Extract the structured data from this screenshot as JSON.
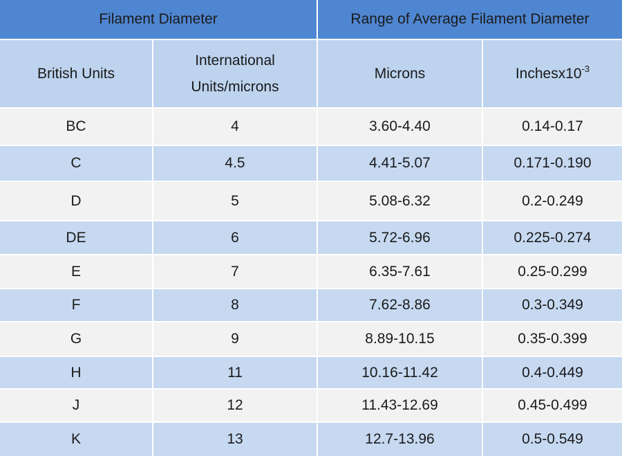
{
  "table": {
    "group_headers": [
      "Filament Diameter",
      "Range of Average Filament Diameter"
    ],
    "column_headers": [
      "British Units",
      "International Units/microns",
      "Microns",
      {
        "text": "Inchesx10",
        "superscript": "-3"
      }
    ],
    "rows": [
      [
        "BC",
        "4",
        "3.60-4.40",
        "0.14-0.17"
      ],
      [
        "C",
        "4.5",
        "4.41-5.07",
        "0.171-0.190"
      ],
      [
        "D",
        "5",
        "5.08-6.32",
        "0.2-0.249"
      ],
      [
        "DE",
        "6",
        "5.72-6.96",
        "0.225-0.274"
      ],
      [
        "E",
        "7",
        "6.35-7.61",
        "0.25-0.299"
      ],
      [
        "F",
        "8",
        "7.62-8.86",
        "0.3-0.349"
      ],
      [
        "G",
        "9",
        "8.89-10.15",
        "0.35-0.399"
      ],
      [
        "H",
        "11",
        "10.16-11.42",
        "0.4-0.449"
      ],
      [
        "J",
        "12",
        "11.43-12.69",
        "0.45-0.499"
      ],
      [
        "K",
        "13",
        "12.7-13.96",
        "0.5-0.549"
      ]
    ]
  }
}
